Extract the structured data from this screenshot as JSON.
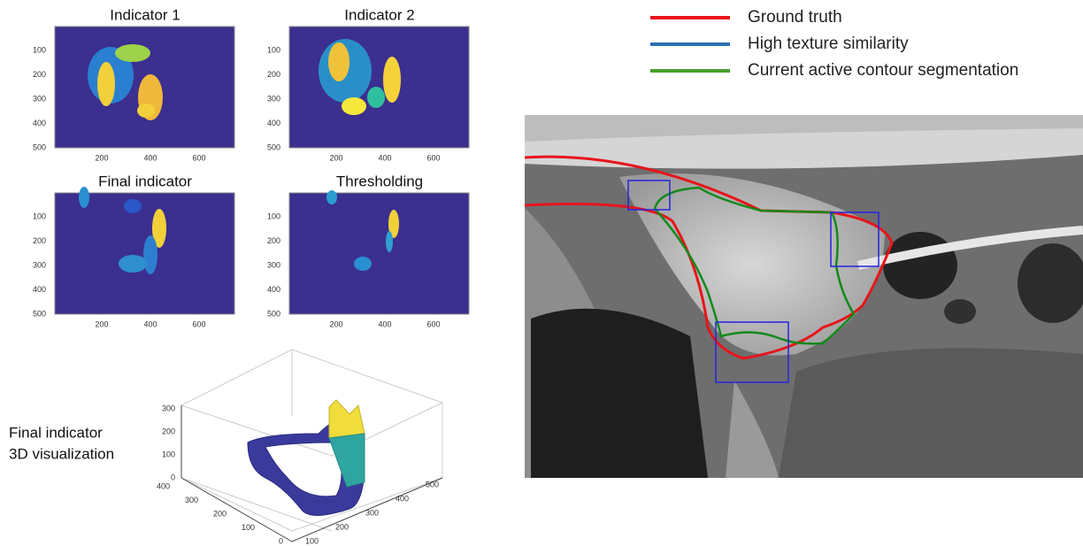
{
  "panels": [
    {
      "title": "Indicator 1"
    },
    {
      "title": "Indicator 2"
    },
    {
      "title": "Final indicator"
    },
    {
      "title": "Thresholding"
    }
  ],
  "panel_yticks": [
    100,
    200,
    300,
    400,
    500
  ],
  "panel_xticks": [
    200,
    400,
    600
  ],
  "visualization_label": [
    "Final indicator",
    "3D visualization"
  ],
  "plot3d": {
    "zticks": [
      0,
      100,
      200,
      300
    ],
    "yticks": [
      0,
      100,
      200,
      300,
      400
    ],
    "xticks": [
      100,
      200,
      300,
      400,
      500
    ]
  },
  "legend": [
    {
      "label": "Ground truth",
      "color": "#e8141a"
    },
    {
      "label": "High texture similarity",
      "color": "#2f6fb5"
    },
    {
      "label": "Current active contour segmentation",
      "color": "#4aa02c"
    }
  ]
}
